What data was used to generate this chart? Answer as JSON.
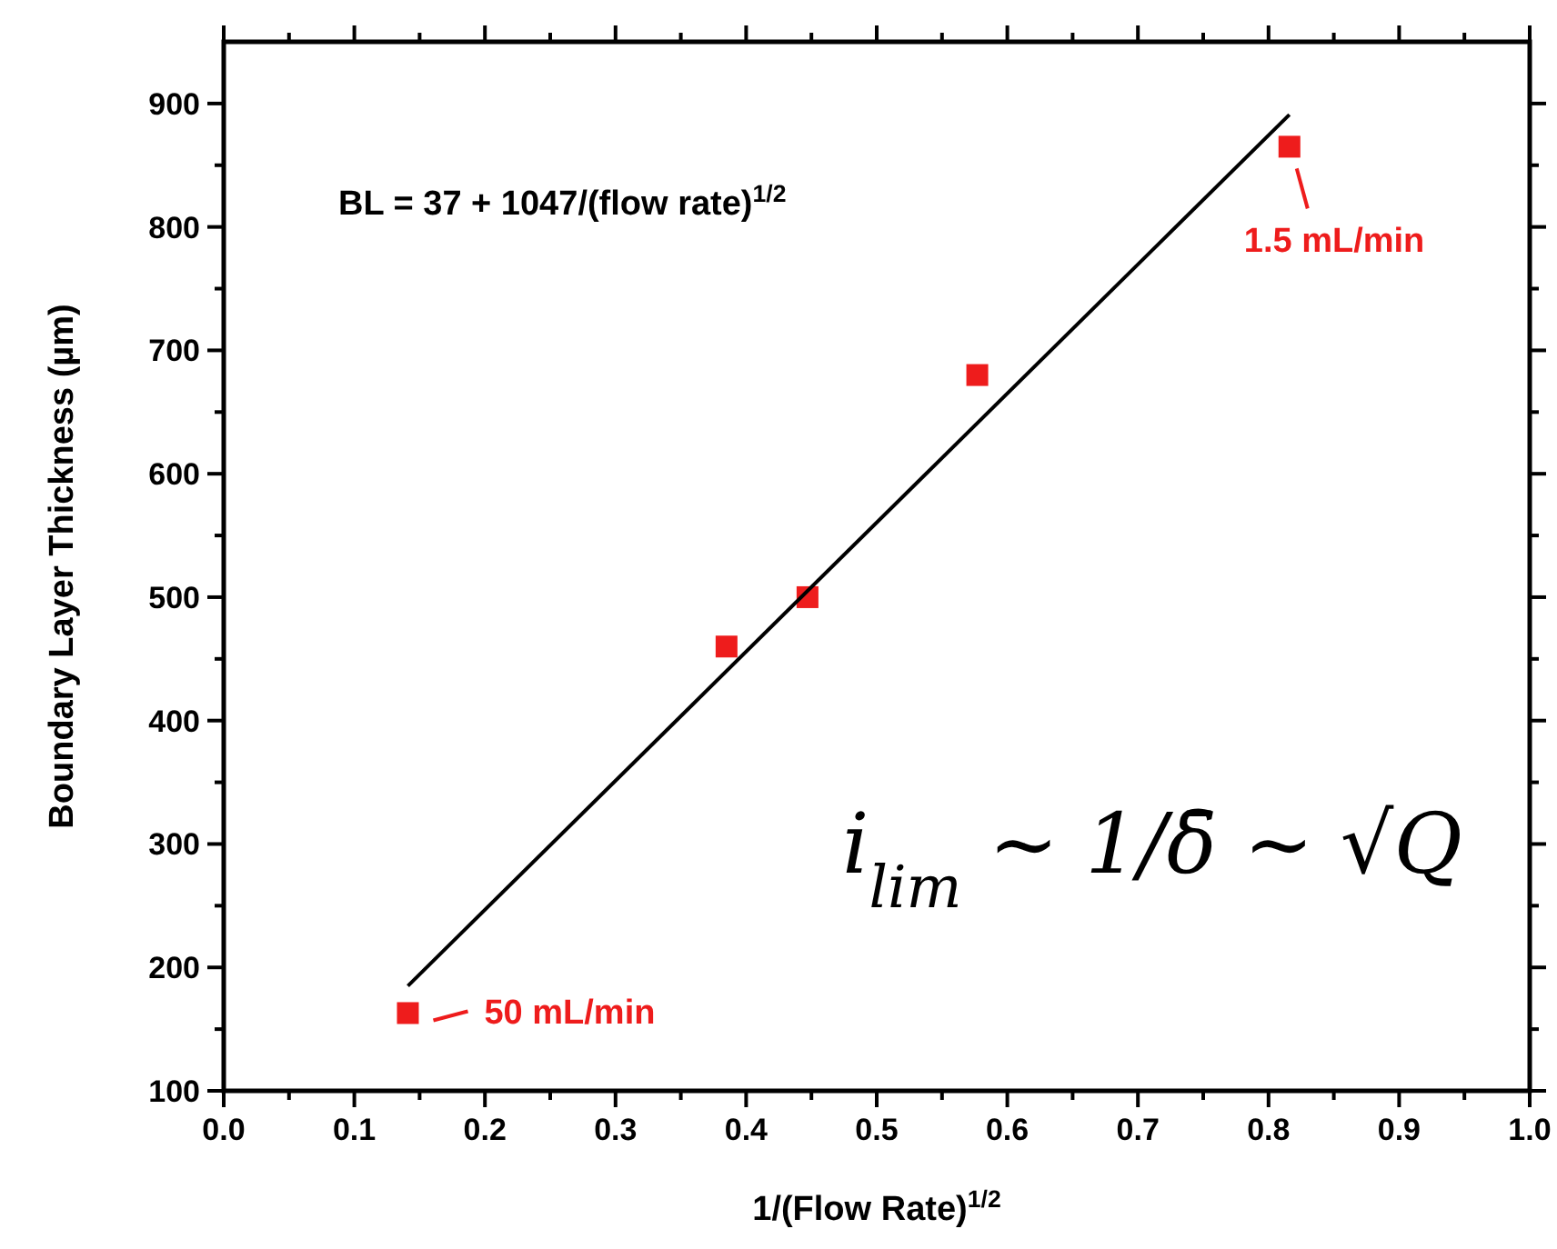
{
  "chart_data": {
    "type": "scatter",
    "xlabel": "1/(Flow Rate)$^{1/2}$",
    "ylabel": "Boundary Layer Thickness (µm)",
    "xlim": [
      0,
      1.0
    ],
    "ylim": [
      100,
      950
    ],
    "xticks": [
      {
        "value": 0,
        "label": "0.0"
      },
      {
        "value": 0.05,
        "label": null
      },
      0.1,
      {
        "value": 0.15,
        "label": null
      },
      0.2,
      {
        "value": 0.25,
        "label": null
      },
      0.3,
      {
        "value": 0.35,
        "label": null
      },
      0.4,
      {
        "value": 0.45,
        "label": null
      },
      0.5,
      {
        "value": 0.55,
        "label": null
      },
      0.6,
      {
        "value": 0.65,
        "label": null
      },
      0.7,
      {
        "value": 0.75,
        "label": null
      },
      0.8,
      {
        "value": 0.85,
        "label": null
      },
      0.9,
      {
        "value": 0.95,
        "label": null
      },
      {
        "value": 1,
        "label": "1.0"
      }
    ],
    "yticks": [
      100,
      {
        "value": 150,
        "label": null
      },
      200,
      {
        "value": 250,
        "label": null
      },
      300,
      {
        "value": 350,
        "label": null
      },
      400,
      {
        "value": 450,
        "label": null
      },
      500,
      {
        "value": 550,
        "label": null
      },
      600,
      {
        "value": 650,
        "label": null
      },
      700,
      {
        "value": 750,
        "label": null
      },
      800,
      {
        "value": 850,
        "label": null
      },
      900
    ],
    "grid": false,
    "series": [
      {
        "marker": "square",
        "color": "#ee1c1c",
        "x": [
          0.141,
          0.385,
          0.447,
          0.577,
          0.816
        ],
        "values": [
          163,
          460,
          500,
          680,
          865
        ]
      },
      {
        "type": "line",
        "marker": "none",
        "color": "#000000",
        "x": [
          0.141,
          0.816
        ],
        "values": [
          185,
          891
        ]
      }
    ],
    "annotations": [
      "BL = 37 + 1047/(flow rate)$^{1/2}$",
      {
        "text": "1.5 mL/min",
        "x": 0.816,
        "y": 865
      },
      {
        "text": "50 mL/min",
        "x": 0.141,
        "y": 163
      },
      "i$_{lim}$ ~ 1/δ̄ ~ √Q"
    ]
  }
}
